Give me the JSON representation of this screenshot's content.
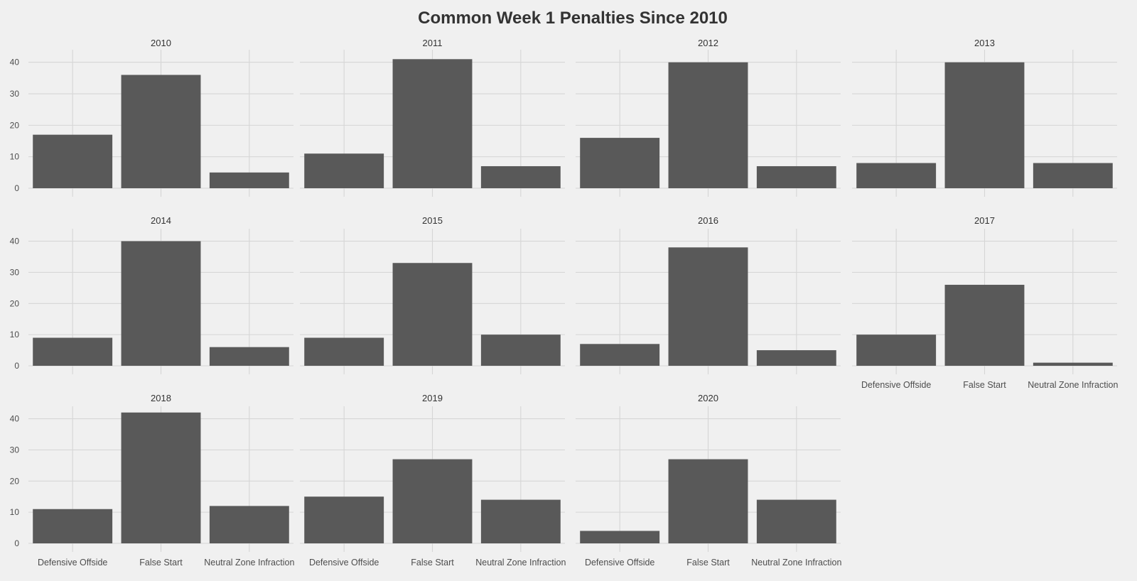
{
  "chart_data": {
    "type": "bar",
    "title": "Common Week 1 Penalties Since 2010",
    "xlabel": "",
    "ylabel": "",
    "categories": [
      "Defensive Offside",
      "False Start",
      "Neutral Zone Infraction"
    ],
    "ylim": [
      0,
      44
    ],
    "yticks": [
      0,
      10,
      20,
      30,
      40
    ],
    "grid": true,
    "colors": {
      "bar": "#595959",
      "background": "#f0f0f0",
      "grid": "#d6d6d6"
    },
    "panels": [
      {
        "label": "2010",
        "values": [
          17,
          36,
          5
        ]
      },
      {
        "label": "2011",
        "values": [
          11,
          41,
          7
        ]
      },
      {
        "label": "2012",
        "values": [
          16,
          40,
          7
        ]
      },
      {
        "label": "2013",
        "values": [
          8,
          40,
          8
        ]
      },
      {
        "label": "2014",
        "values": [
          9,
          40,
          6
        ]
      },
      {
        "label": "2015",
        "values": [
          9,
          33,
          10
        ]
      },
      {
        "label": "2016",
        "values": [
          7,
          38,
          5
        ]
      },
      {
        "label": "2017",
        "values": [
          10,
          26,
          1
        ]
      },
      {
        "label": "2018",
        "values": [
          11,
          42,
          12
        ]
      },
      {
        "label": "2019",
        "values": [
          15,
          27,
          14
        ]
      },
      {
        "label": "2020",
        "values": [
          4,
          27,
          14
        ]
      }
    ]
  }
}
